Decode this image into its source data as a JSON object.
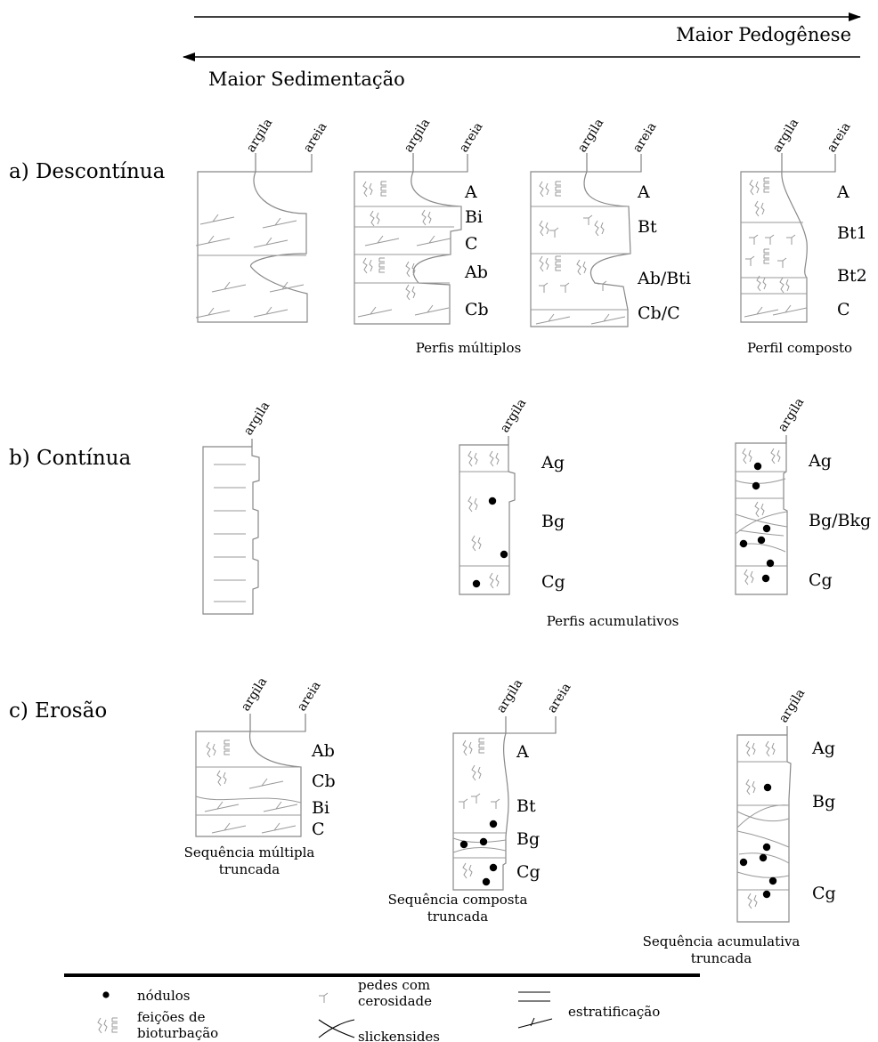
{
  "arrows": {
    "right_label": "Maior Pedogênese",
    "left_label": "Maior Sedimentação"
  },
  "rows": {
    "a_label": "a) Descontínua",
    "b_label": "b) Contínua",
    "c_label": "c) Erosão"
  },
  "axis": {
    "clay": "argila",
    "sand": "areia"
  },
  "profiles": {
    "a2_horizons": [
      "A",
      "Bi",
      "C",
      "Ab",
      "Cb"
    ],
    "a3_horizons": [
      "A",
      "Bt",
      "Ab/Bti",
      "Cb/C"
    ],
    "a4_horizons": [
      "A",
      "Bt1",
      "Bt2",
      "C"
    ],
    "b2_horizons": [
      "Ag",
      "Bg",
      "Cg"
    ],
    "b3_horizons": [
      "Ag",
      "Bg/Bkg",
      "Cg"
    ],
    "c1_horizons": [
      "Ab",
      "Cb",
      "Bi",
      "C"
    ],
    "c2_horizons": [
      "A",
      "Bt",
      "Bg",
      "Cg"
    ],
    "c3_horizons": [
      "Ag",
      "Bg",
      "Cg"
    ]
  },
  "captions": {
    "multiple": "Perfis múltiplos",
    "composite": "Perfil composto",
    "cumulative": "Perfis acumulativos",
    "c1_line1": "Sequência múltipla",
    "c1_line2": "truncada",
    "c2_line1": "Sequência composta",
    "c2_line2": "truncada",
    "c3_line1": "Sequência acumulativa",
    "c3_line2": "truncada"
  },
  "legend": {
    "nodules": "nódulos",
    "bioturbation_1": "feições de",
    "bioturbation_2": "bioturbação",
    "cutans_1": "pedes com",
    "cutans_2": "cerosidade",
    "slickensides": "slickensides",
    "stratification": "estratificação"
  }
}
